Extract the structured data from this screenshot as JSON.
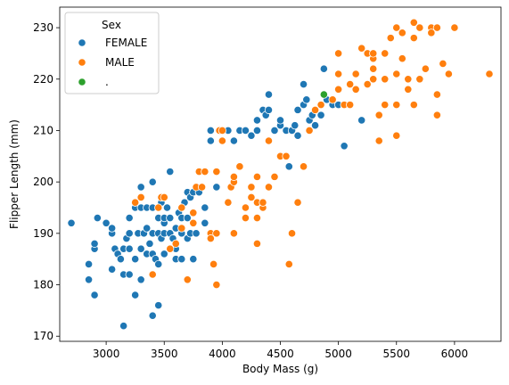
{
  "chart_data": {
    "type": "scatter",
    "xlabel": "Body Mass (g)",
    "ylabel": "Flipper Length (mm)",
    "xlim": [
      2600,
      6400
    ],
    "ylim": [
      169,
      234
    ],
    "xticks": [
      3000,
      3500,
      4000,
      4500,
      5000,
      5500,
      6000
    ],
    "yticks": [
      170,
      180,
      190,
      200,
      210,
      220,
      230
    ],
    "grid": false,
    "legend": {
      "title": "Sex",
      "placement": "top-left",
      "entries": [
        {
          "label": "FEMALE",
          "color": "#1f77b4"
        },
        {
          "label": "MALE",
          "color": "#ff7f0e"
        },
        {
          "label": ".",
          "color": "#2ca02c"
        }
      ]
    },
    "series": [
      {
        "name": "FEMALE",
        "color": "#1f77b4",
        "points": [
          [
            2700,
            192
          ],
          [
            2850,
            181
          ],
          [
            2850,
            184
          ],
          [
            2900,
            178
          ],
          [
            2900,
            187
          ],
          [
            2900,
            188
          ],
          [
            2925,
            193
          ],
          [
            3000,
            192
          ],
          [
            3050,
            190
          ],
          [
            3050,
            191
          ],
          [
            3050,
            183
          ],
          [
            3075,
            187
          ],
          [
            3100,
            186
          ],
          [
            3125,
            185
          ],
          [
            3150,
            172
          ],
          [
            3150,
            182
          ],
          [
            3150,
            187
          ],
          [
            3175,
            189
          ],
          [
            3200,
            182
          ],
          [
            3200,
            190
          ],
          [
            3200,
            187
          ],
          [
            3200,
            193
          ],
          [
            3250,
            195
          ],
          [
            3250,
            178
          ],
          [
            3250,
            185
          ],
          [
            3275,
            190
          ],
          [
            3300,
            181
          ],
          [
            3300,
            195
          ],
          [
            3300,
            199
          ],
          [
            3300,
            187
          ],
          [
            3325,
            190
          ],
          [
            3350,
            195
          ],
          [
            3350,
            186
          ],
          [
            3350,
            191
          ],
          [
            3375,
            188
          ],
          [
            3400,
            200
          ],
          [
            3400,
            195
          ],
          [
            3400,
            174
          ],
          [
            3400,
            190
          ],
          [
            3400,
            186
          ],
          [
            3425,
            185
          ],
          [
            3450,
            176
          ],
          [
            3450,
            184
          ],
          [
            3450,
            190
          ],
          [
            3450,
            193
          ],
          [
            3475,
            189
          ],
          [
            3475,
            196
          ],
          [
            3500,
            190
          ],
          [
            3500,
            192
          ],
          [
            3500,
            186
          ],
          [
            3500,
            193
          ],
          [
            3525,
            195
          ],
          [
            3550,
            202
          ],
          [
            3550,
            193
          ],
          [
            3550,
            190
          ],
          [
            3575,
            189
          ],
          [
            3600,
            187
          ],
          [
            3600,
            191
          ],
          [
            3600,
            185
          ],
          [
            3625,
            194
          ],
          [
            3650,
            190
          ],
          [
            3650,
            185
          ],
          [
            3650,
            193
          ],
          [
            3675,
            196
          ],
          [
            3700,
            198
          ],
          [
            3700,
            189
          ],
          [
            3700,
            193
          ],
          [
            3725,
            190
          ],
          [
            3725,
            197
          ],
          [
            3750,
            198
          ],
          [
            3750,
            185
          ],
          [
            3775,
            190
          ],
          [
            3800,
            198
          ],
          [
            3850,
            192
          ],
          [
            3850,
            195
          ],
          [
            3900,
            208
          ],
          [
            3900,
            210
          ],
          [
            3950,
            199
          ],
          [
            4050,
            210
          ],
          [
            4100,
            208
          ],
          [
            4150,
            210
          ],
          [
            4200,
            210
          ],
          [
            4250,
            209
          ],
          [
            4300,
            212
          ],
          [
            4300,
            210
          ],
          [
            4350,
            214
          ],
          [
            4375,
            213
          ],
          [
            4400,
            214
          ],
          [
            4400,
            217
          ],
          [
            4450,
            210
          ],
          [
            4500,
            211
          ],
          [
            4500,
            212
          ],
          [
            4550,
            210
          ],
          [
            4575,
            203
          ],
          [
            4600,
            210
          ],
          [
            4625,
            211
          ],
          [
            4650,
            214
          ],
          [
            4650,
            209
          ],
          [
            4700,
            215
          ],
          [
            4725,
            216
          ],
          [
            4750,
            210
          ],
          [
            4750,
            212
          ],
          [
            4775,
            213
          ],
          [
            4800,
            211
          ],
          [
            4850,
            213
          ],
          [
            4850,
            215
          ],
          [
            4875,
            222
          ],
          [
            4900,
            216
          ],
          [
            4950,
            215
          ],
          [
            5000,
            215
          ],
          [
            5050,
            207
          ],
          [
            5200,
            212
          ],
          [
            4700,
            219
          ]
        ]
      },
      {
        "name": "MALE",
        "color": "#ff7f0e",
        "points": [
          [
            3250,
            196
          ],
          [
            3300,
            197
          ],
          [
            3400,
            182
          ],
          [
            3450,
            195
          ],
          [
            3475,
            197
          ],
          [
            3500,
            197
          ],
          [
            3550,
            187
          ],
          [
            3600,
            188
          ],
          [
            3650,
            195
          ],
          [
            3650,
            191
          ],
          [
            3700,
            181
          ],
          [
            3750,
            192
          ],
          [
            3750,
            194
          ],
          [
            3775,
            199
          ],
          [
            3800,
            202
          ],
          [
            3825,
            199
          ],
          [
            3850,
            202
          ],
          [
            3900,
            190
          ],
          [
            3900,
            189
          ],
          [
            3925,
            184
          ],
          [
            3950,
            180
          ],
          [
            3950,
            190
          ],
          [
            3975,
            210
          ],
          [
            4000,
            208
          ],
          [
            4000,
            210
          ],
          [
            4050,
            196
          ],
          [
            4075,
            199
          ],
          [
            4100,
            200
          ],
          [
            4100,
            201
          ],
          [
            4150,
            203
          ],
          [
            4200,
            195
          ],
          [
            4200,
            193
          ],
          [
            4250,
            197
          ],
          [
            4250,
            199
          ],
          [
            4300,
            196
          ],
          [
            4300,
            193
          ],
          [
            4350,
            195
          ],
          [
            4350,
            196
          ],
          [
            4300,
            201
          ],
          [
            4300,
            188
          ],
          [
            4400,
            199
          ],
          [
            4400,
            208
          ],
          [
            4450,
            201
          ],
          [
            4500,
            205
          ],
          [
            4550,
            205
          ],
          [
            4575,
            184
          ],
          [
            4600,
            190
          ],
          [
            4650,
            196
          ],
          [
            4700,
            203
          ],
          [
            4100,
            190
          ],
          [
            4750,
            210
          ],
          [
            4800,
            214
          ],
          [
            4850,
            215
          ],
          [
            4950,
            216
          ],
          [
            5000,
            218
          ],
          [
            5000,
            221
          ],
          [
            5050,
            215
          ],
          [
            5100,
            215
          ],
          [
            5100,
            219
          ],
          [
            5150,
            221
          ],
          [
            5200,
            226
          ],
          [
            5250,
            219
          ],
          [
            5250,
            225
          ],
          [
            5300,
            220
          ],
          [
            5300,
            222
          ],
          [
            5300,
            224
          ],
          [
            5350,
            208
          ],
          [
            5350,
            213
          ],
          [
            5400,
            215
          ],
          [
            5400,
            220
          ],
          [
            5400,
            225
          ],
          [
            5450,
            228
          ],
          [
            5500,
            230
          ],
          [
            5500,
            215
          ],
          [
            5500,
            221
          ],
          [
            5550,
            224
          ],
          [
            5550,
            229
          ],
          [
            5600,
            218
          ],
          [
            5600,
            220
          ],
          [
            5650,
            215
          ],
          [
            5650,
            228
          ],
          [
            5700,
            230
          ],
          [
            5700,
            220
          ],
          [
            5750,
            222
          ],
          [
            5800,
            230
          ],
          [
            5800,
            229
          ],
          [
            5850,
            213
          ],
          [
            5850,
            217
          ],
          [
            5900,
            223
          ],
          [
            5950,
            221
          ],
          [
            6000,
            230
          ],
          [
            6300,
            221
          ],
          [
            5850,
            230
          ],
          [
            5300,
            225
          ],
          [
            5000,
            225
          ],
          [
            5650,
            231
          ],
          [
            5150,
            218
          ],
          [
            5500,
            209
          ],
          [
            3950,
            202
          ]
        ]
      },
      {
        "name": ".",
        "color": "#2ca02c",
        "points": [
          [
            4875,
            217
          ]
        ]
      }
    ]
  }
}
